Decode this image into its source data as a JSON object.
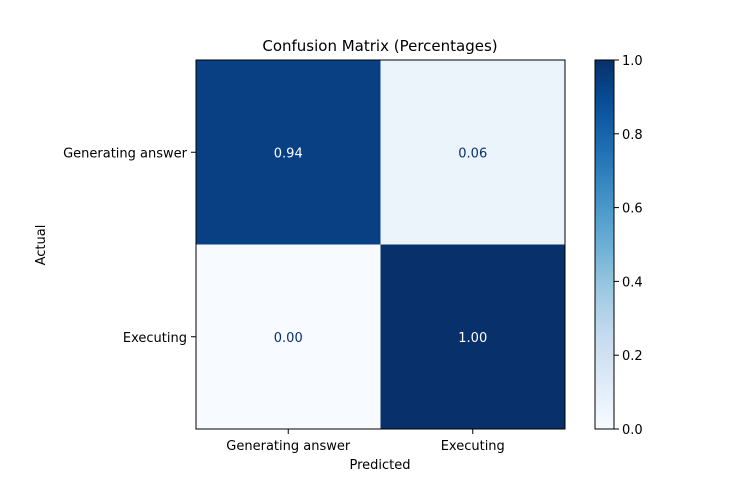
{
  "chart_data": {
    "type": "heatmap",
    "title": "Confusion Matrix (Percentages)",
    "xlabel": "Predicted",
    "ylabel": "Actual",
    "x_categories": [
      "Generating answer",
      "Executing"
    ],
    "y_categories": [
      "Generating answer",
      "Executing"
    ],
    "values": [
      [
        0.94,
        0.06
      ],
      [
        0.0,
        1.0
      ]
    ],
    "cell_labels": [
      [
        "0.94",
        "0.06"
      ],
      [
        "0.00",
        "1.00"
      ]
    ],
    "colormap": "Blues",
    "colorbar": {
      "range": [
        0.0,
        1.0
      ],
      "ticks": [
        0.0,
        0.2,
        0.4,
        0.6,
        0.8,
        1.0
      ],
      "tick_labels": [
        "0.0",
        "0.2",
        "0.4",
        "0.6",
        "0.8",
        "1.0"
      ],
      "position": "right"
    },
    "colors": {
      "low": "#f7fbff",
      "high": "#08306b",
      "text_on_dark": "#ffffff",
      "text_on_light": "#08306b"
    }
  }
}
